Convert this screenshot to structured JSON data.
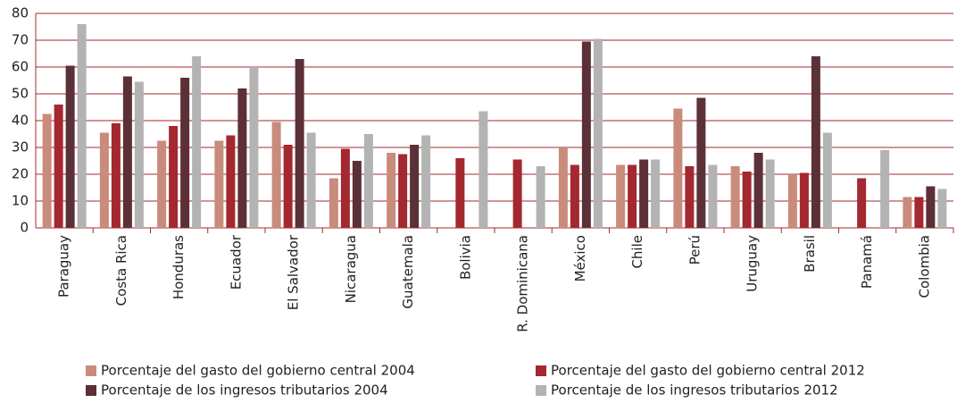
{
  "chart_data": {
    "type": "bar",
    "categories": [
      "Paraguay",
      "Costa Rica",
      "Honduras",
      "Ecuador",
      "El Salvador",
      "Nicaragua",
      "Guatemala",
      "Bolivia",
      "R. Dominicana",
      "México",
      "Chile",
      "Perú",
      "Uruguay",
      "Brasil",
      "Panamá",
      "Colombia"
    ],
    "series": [
      {
        "name": "Porcentaje del gasto del gobierno central 2004",
        "color": "#c98b7b",
        "values": [
          42.5,
          35.5,
          32.5,
          32.5,
          39.5,
          18.5,
          28,
          null,
          null,
          30,
          23.5,
          44.5,
          23,
          20,
          null,
          11.5
        ]
      },
      {
        "name": "Porcentaje del gasto del gobierno central 2012",
        "color": "#a4282f",
        "values": [
          46,
          39,
          38,
          34.5,
          31,
          29.5,
          27.5,
          26,
          25.5,
          23.5,
          23.5,
          23,
          21,
          20.5,
          18.5,
          11.5
        ]
      },
      {
        "name": "Porcentaje de los ingresos tributarios 2004",
        "color": "#5b3036",
        "values": [
          60.5,
          56.5,
          56,
          52,
          63,
          25,
          31,
          null,
          null,
          69.5,
          25.5,
          48.5,
          28,
          64,
          null,
          15.5
        ]
      },
      {
        "name": "Porcentaje de los ingresos tributarios 2012",
        "color": "#b3b3b3",
        "values": [
          76,
          54.5,
          64,
          60,
          35.5,
          35,
          34.5,
          43.5,
          23,
          70.5,
          25.5,
          23.5,
          25.5,
          35.5,
          29,
          14.5
        ]
      }
    ],
    "ylim": [
      0,
      80
    ],
    "yticks": [
      0,
      10,
      20,
      30,
      40,
      50,
      60,
      70,
      80
    ],
    "grid": true
  }
}
